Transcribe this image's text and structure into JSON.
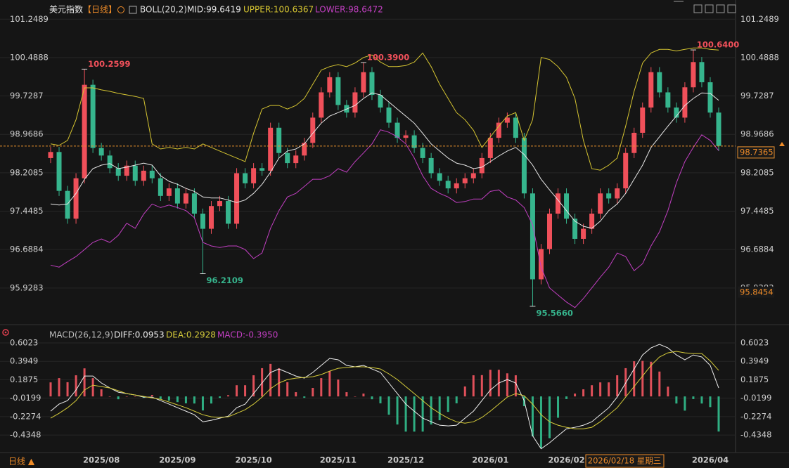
{
  "chart_data": [
    {
      "type": "candlestick",
      "title": "美元指数",
      "period": "【日线】",
      "indicator": "BOLL(20,2)",
      "up_color": "#f0505a",
      "down_color": "#36b58d",
      "open": [
        98.5,
        98.62,
        97.85,
        97.3,
        98.1,
        99.95,
        98.7,
        98.55,
        98.3,
        98.15,
        98.35,
        98.05,
        98.25,
        98.1,
        97.75,
        97.9,
        97.6,
        97.8,
        97.4,
        97.1,
        97.55,
        97.65,
        97.2,
        98.2,
        98.0,
        98.3,
        98.25,
        99.1,
        98.6,
        98.4,
        98.55,
        98.8,
        99.3,
        99.8,
        100.1,
        99.55,
        99.4,
        99.8,
        100.2,
        99.75,
        99.5,
        99.2,
        98.9,
        98.95,
        98.7,
        98.5,
        98.2,
        98.05,
        97.9,
        98.0,
        98.1,
        98.2,
        98.5,
        98.9,
        99.2,
        99.3,
        98.9,
        97.8,
        96.1,
        96.7,
        97.4,
        97.8,
        97.3,
        96.9,
        97.1,
        97.4,
        97.8,
        97.7,
        97.9,
        98.6,
        99.0,
        99.5,
        100.2,
        99.8,
        99.5,
        99.3,
        99.9,
        100.4,
        100.0,
        99.4
      ],
      "high": [
        98.72,
        98.72,
        97.95,
        98.2,
        100.2599,
        100.05,
        98.8,
        98.65,
        98.4,
        98.45,
        98.45,
        98.35,
        98.35,
        98.2,
        98.0,
        98.0,
        97.9,
        97.9,
        97.5,
        97.65,
        97.75,
        97.75,
        98.3,
        98.3,
        98.4,
        98.4,
        99.2,
        99.2,
        98.7,
        98.65,
        98.9,
        99.4,
        99.9,
        100.2,
        100.2,
        99.65,
        99.9,
        100.39,
        100.3,
        99.85,
        99.6,
        99.3,
        99.05,
        99.05,
        98.8,
        98.6,
        98.3,
        98.15,
        98.1,
        98.2,
        98.3,
        98.6,
        99.0,
        99.3,
        99.4,
        99.4,
        99.0,
        97.9,
        96.8,
        97.5,
        97.9,
        97.9,
        97.4,
        97.2,
        97.5,
        97.9,
        97.9,
        98.0,
        98.7,
        99.1,
        99.6,
        100.3,
        100.3,
        99.9,
        99.6,
        100.0,
        100.64,
        100.5,
        100.1,
        99.5
      ],
      "low": [
        98.4,
        97.75,
        97.2,
        97.2,
        98.0,
        98.6,
        98.45,
        98.2,
        98.05,
        98.05,
        97.95,
        97.95,
        98.0,
        97.65,
        97.65,
        97.5,
        97.5,
        97.3,
        96.2109,
        97.0,
        97.45,
        97.1,
        97.1,
        97.9,
        97.9,
        98.15,
        98.15,
        98.5,
        98.3,
        98.3,
        98.45,
        98.7,
        99.2,
        99.7,
        99.45,
        99.3,
        99.3,
        99.7,
        99.65,
        99.4,
        99.1,
        98.8,
        98.8,
        98.6,
        98.4,
        98.1,
        97.95,
        97.8,
        97.8,
        97.9,
        98.0,
        98.1,
        98.4,
        98.8,
        99.1,
        98.8,
        97.7,
        95.566,
        96.0,
        96.6,
        97.3,
        97.2,
        96.8,
        96.8,
        97.0,
        97.3,
        97.6,
        97.6,
        97.8,
        98.5,
        98.9,
        99.4,
        99.7,
        99.4,
        99.2,
        99.2,
        99.8,
        99.9,
        99.3,
        98.64
      ],
      "close": [
        98.62,
        97.85,
        97.3,
        98.1,
        99.95,
        98.7,
        98.55,
        98.3,
        98.15,
        98.35,
        98.05,
        98.25,
        98.1,
        97.75,
        97.9,
        97.6,
        97.8,
        97.4,
        97.1,
        97.55,
        97.65,
        97.2,
        98.2,
        98.0,
        98.3,
        98.25,
        99.1,
        98.6,
        98.4,
        98.55,
        98.8,
        99.3,
        99.8,
        100.1,
        99.55,
        99.4,
        99.8,
        100.2,
        99.75,
        99.5,
        99.2,
        98.9,
        98.95,
        98.7,
        98.5,
        98.2,
        98.05,
        97.9,
        98.0,
        98.1,
        98.2,
        98.5,
        98.9,
        99.2,
        99.3,
        98.9,
        97.8,
        96.1,
        96.7,
        97.4,
        97.8,
        97.3,
        96.9,
        97.1,
        97.4,
        97.8,
        97.7,
        97.9,
        98.6,
        99.0,
        99.5,
        100.2,
        99.8,
        99.5,
        99.3,
        99.9,
        100.4,
        100.0,
        99.4,
        98.74
      ],
      "series": [
        {
          "name": "MID:99.6419",
          "color": "#e8e8e8",
          "values": [
            97.59,
            97.57,
            97.59,
            97.8,
            98.08,
            98.29,
            98.36,
            98.39,
            98.29,
            98.32,
            98.36,
            98.4,
            98.36,
            98.15,
            98.04,
            97.98,
            97.9,
            97.84,
            97.73,
            97.71,
            97.71,
            97.67,
            97.62,
            97.67,
            97.8,
            97.98,
            98.22,
            98.5,
            98.64,
            98.68,
            98.78,
            98.99,
            99.19,
            99.33,
            99.4,
            99.47,
            99.54,
            99.68,
            99.79,
            99.75,
            99.61,
            99.47,
            99.33,
            99.19,
            98.99,
            98.78,
            98.64,
            98.5,
            98.4,
            98.36,
            98.29,
            98.32,
            98.43,
            98.54,
            98.64,
            98.71,
            98.57,
            98.36,
            98.08,
            97.87,
            97.67,
            97.46,
            97.25,
            97.15,
            97.11,
            97.25,
            97.46,
            97.59,
            97.8,
            98.08,
            98.36,
            98.71,
            98.92,
            99.13,
            99.33,
            99.54,
            99.68,
            99.79,
            99.78,
            99.6419
          ]
        },
        {
          "name": "UPPER:100.6367",
          "color": "#d6c531",
          "values": [
            98.78,
            98.75,
            98.85,
            99.26,
            99.89,
            99.89,
            99.85,
            99.82,
            99.78,
            99.75,
            99.72,
            99.68,
            98.78,
            98.68,
            98.71,
            98.68,
            98.71,
            98.68,
            98.78,
            98.71,
            98.64,
            98.57,
            98.5,
            98.43,
            98.99,
            99.47,
            99.54,
            99.54,
            99.47,
            99.54,
            99.68,
            99.96,
            100.24,
            100.31,
            100.35,
            100.31,
            100.38,
            100.49,
            100.54,
            100.4,
            100.31,
            100.31,
            100.33,
            100.4,
            100.58,
            100.31,
            99.96,
            99.68,
            99.4,
            99.26,
            99.05,
            98.71,
            98.92,
            99.13,
            99.33,
            99.4,
            98.85,
            99.26,
            100.49,
            100.45,
            100.31,
            100.1,
            99.68,
            98.85,
            98.29,
            98.26,
            98.36,
            98.5,
            99.13,
            99.82,
            100.38,
            100.58,
            100.65,
            100.65,
            100.62,
            100.65,
            100.68,
            100.68,
            100.65,
            100.6367
          ]
        },
        {
          "name": "LOWER:98.6472",
          "color": "#c23fc2",
          "values": [
            96.38,
            96.34,
            96.45,
            96.55,
            96.69,
            96.83,
            96.9,
            96.83,
            96.97,
            97.21,
            97.11,
            97.39,
            97.59,
            97.52,
            97.57,
            97.52,
            97.46,
            97.32,
            96.83,
            96.76,
            96.73,
            96.76,
            96.76,
            96.69,
            96.51,
            96.62,
            97.11,
            97.46,
            97.73,
            97.8,
            97.94,
            98.08,
            98.08,
            98.15,
            98.29,
            98.22,
            98.43,
            98.6,
            98.78,
            99.06,
            99.01,
            98.92,
            98.78,
            98.5,
            98.15,
            97.9,
            97.8,
            97.73,
            97.62,
            97.64,
            97.69,
            97.69,
            97.84,
            97.87,
            97.73,
            97.67,
            97.52,
            97.18,
            96.34,
            95.93,
            95.79,
            95.65,
            95.54,
            95.72,
            95.93,
            96.14,
            96.34,
            96.62,
            96.55,
            96.27,
            96.41,
            96.76,
            97.04,
            97.46,
            98.01,
            98.43,
            98.71,
            98.96,
            98.85,
            98.6472
          ]
        }
      ],
      "annotations": [
        100.2599,
        96.2109,
        {
          "value": 100.39,
          "label": "100.3900"
        },
        {
          "value": 95.566,
          "label": "95.5660"
        },
        {
          "value": 100.64,
          "label": "100.6400"
        }
      ],
      "last_price": 98.7365,
      "cursor_price": 95.8454,
      "ylim": [
        95.3,
        101.35
      ],
      "yticks": [
        101.2489,
        100.4888,
        99.7287,
        98.9686,
        98.2085,
        97.4485,
        96.6884,
        95.9283
      ],
      "grid": true
    },
    {
      "type": "macd",
      "indicator": "MACD(26,12,9)",
      "cursor_date": "2026/02/18 星期三",
      "period_label": "日线 ▲",
      "categories": [
        null,
        null,
        null,
        null,
        null,
        null,
        "2025/08",
        null,
        null,
        null,
        null,
        null,
        null,
        null,
        null,
        "2025/09",
        null,
        null,
        null,
        null,
        null,
        null,
        null,
        null,
        "2025/10",
        null,
        null,
        null,
        null,
        null,
        null,
        null,
        null,
        null,
        "2025/11",
        null,
        null,
        null,
        null,
        null,
        null,
        null,
        "2025/12",
        null,
        null,
        null,
        null,
        null,
        null,
        null,
        null,
        null,
        "2026/01",
        null,
        null,
        null,
        null,
        null,
        null,
        null,
        null,
        "2026/02",
        null,
        null,
        null,
        null,
        null,
        null,
        null,
        null,
        null,
        null,
        null,
        null,
        null,
        null,
        null,
        null,
        "2026/04",
        null
      ],
      "series": [
        {
          "name": "DIFF:0.0953",
          "color": "#eeeeee",
          "values": [
            -0.166,
            -0.087,
            -0.047,
            0.072,
            0.23,
            0.23,
            0.151,
            0.095,
            0.048,
            0.032,
            0.016,
            -0.008,
            -0.008,
            -0.047,
            -0.087,
            -0.127,
            -0.166,
            -0.206,
            -0.285,
            -0.269,
            -0.245,
            -0.222,
            -0.127,
            -0.087,
            0.032,
            0.151,
            0.27,
            0.309,
            0.27,
            0.23,
            0.206,
            0.27,
            0.349,
            0.428,
            0.412,
            0.349,
            0.333,
            0.349,
            0.309,
            0.27,
            0.151,
            0.032,
            -0.087,
            -0.166,
            -0.245,
            -0.285,
            -0.324,
            -0.332,
            -0.324,
            -0.245,
            -0.166,
            -0.047,
            0.072,
            0.151,
            0.19,
            0.151,
            -0.047,
            -0.443,
            -0.59,
            -0.522,
            -0.443,
            -0.364,
            -0.348,
            -0.324,
            -0.285,
            -0.206,
            -0.127,
            -0.008,
            0.151,
            0.309,
            0.467,
            0.546,
            0.586,
            0.546,
            0.467,
            0.412,
            0.467,
            0.444,
            0.349,
            0.0953
          ]
        },
        {
          "name": "DEA:0.2928",
          "color": "#d6cc3a",
          "values": [
            -0.245,
            -0.19,
            -0.127,
            -0.047,
            0.072,
            0.127,
            0.111,
            0.095,
            0.064,
            0.032,
            0.016,
            0,
            -0.016,
            -0.032,
            -0.063,
            -0.095,
            -0.127,
            -0.166,
            -0.206,
            -0.229,
            -0.237,
            -0.229,
            -0.19,
            -0.15,
            -0.087,
            -0.008,
            0.087,
            0.151,
            0.19,
            0.206,
            0.214,
            0.222,
            0.246,
            0.285,
            0.317,
            0.325,
            0.333,
            0.333,
            0.325,
            0.309,
            0.254,
            0.19,
            0.111,
            0.032,
            -0.047,
            -0.127,
            -0.19,
            -0.245,
            -0.285,
            -0.301,
            -0.285,
            -0.237,
            -0.166,
            -0.087,
            -0.008,
            0.032,
            0.008,
            -0.087,
            -0.206,
            -0.285,
            -0.324,
            -0.348,
            -0.364,
            -0.364,
            -0.348,
            -0.285,
            -0.206,
            -0.127,
            -0.008,
            0.111,
            0.23,
            0.349,
            0.444,
            0.491,
            0.507,
            0.491,
            0.483,
            0.483,
            0.4,
            0.2928
          ]
        },
        {
          "name": "MACD:-0.3950",
          "color": "#c23fc2",
          "up_color": "#e0505a",
          "down_color": "#2fae82",
          "values": [
            0.158,
            0.206,
            0.16,
            0.238,
            0.316,
            0.206,
            0.08,
            0,
            -0.032,
            0,
            0,
            -0.016,
            0.016,
            -0.03,
            -0.048,
            -0.064,
            -0.078,
            -0.08,
            -0.158,
            -0.08,
            -0.016,
            0.014,
            0.126,
            0.126,
            0.238,
            0.318,
            0.366,
            0.316,
            0.16,
            0.048,
            -0.016,
            0.096,
            0.206,
            0.286,
            0.19,
            0.048,
            0,
            0.032,
            -0.032,
            -0.078,
            -0.206,
            -0.316,
            -0.396,
            -0.396,
            -0.396,
            -0.316,
            -0.268,
            -0.174,
            -0.078,
            0.112,
            0.238,
            0.24,
            0.3,
            0.3,
            0.26,
            0.238,
            -0.11,
            -0.45,
            -0.58,
            -0.47,
            -0.24,
            -0.03,
            0.032,
            0.08,
            0.126,
            0.158,
            0.158,
            0.238,
            0.318,
            0.396,
            0.4,
            0.39,
            0.28,
            0.11,
            -0.08,
            -0.16,
            -0.03,
            -0.08,
            -0.12,
            -0.395
          ]
        }
      ],
      "ylim": [
        -0.6,
        0.705
      ],
      "yticks": [
        0.6023,
        0.3949,
        0.1875,
        -0.0199,
        -0.2274,
        -0.4348
      ],
      "grid": true
    }
  ]
}
